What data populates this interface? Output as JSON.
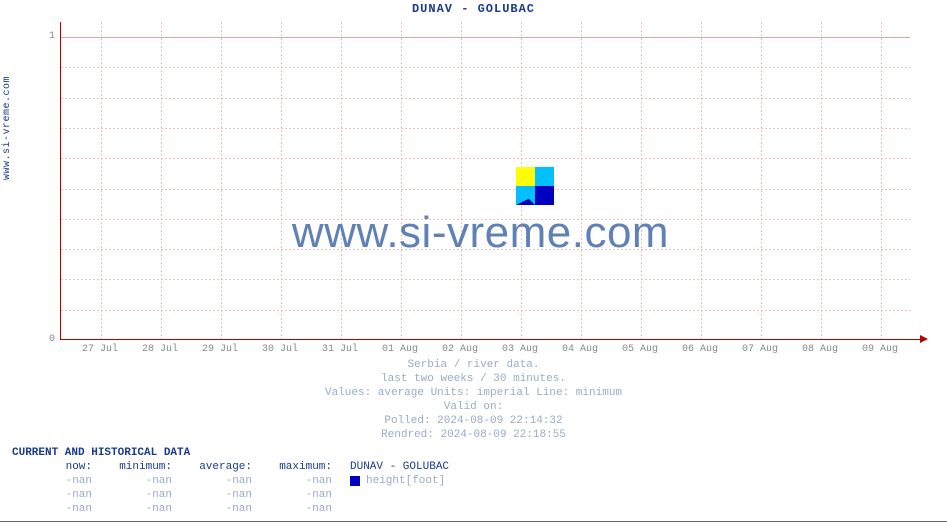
{
  "chart": {
    "title": "DUNAV -  GOLUBAC",
    "ylabel_side": "www.si-vreme.com",
    "watermark_text": "www.si-vreme.com",
    "plot_bg": "#ffffff",
    "axis_color": "#b00000",
    "grid_color": "#f0c0c0",
    "title_color": "#1a3a8a",
    "tick_color": "#888888",
    "meta_color": "#9aabc8",
    "yticks": [
      {
        "v": 0,
        "label": "0"
      },
      {
        "v": 1,
        "label": "1"
      }
    ],
    "ylim": [
      0,
      1.05
    ],
    "xticks": [
      "27 Jul",
      "28 Jul",
      "29 Jul",
      "30 Jul",
      "31 Jul",
      "01 Aug",
      "02 Aug",
      "03 Aug",
      "04 Aug",
      "05 Aug",
      "06 Aug",
      "07 Aug",
      "08 Aug",
      "09 Aug"
    ],
    "minor_h_count": 10,
    "logo_colors": {
      "a": "#ffff00",
      "b": "#00c0ff",
      "c": "#0000c0"
    }
  },
  "meta": {
    "line1": "Serbia / river data.",
    "line2": "last two weeks / 30 minutes.",
    "line3": "Values: average  Units: imperial  Line: minimum",
    "line4": "Valid on:",
    "line5": "Polled: 2024-08-09 22:14:32",
    "line6": "Rendred: 2024-08-09 22:18:55"
  },
  "table": {
    "header": "CURRENT AND HISTORICAL DATA",
    "columns": [
      "now:",
      "minimum:",
      "average:",
      "maximum:"
    ],
    "series_label": "DUNAV -  GOLUBAC",
    "legend_text": "height[foot]",
    "legend_color": "#0000c0",
    "rows": [
      [
        "-nan",
        "-nan",
        "-nan",
        "-nan"
      ],
      [
        "-nan",
        "-nan",
        "-nan",
        "-nan"
      ],
      [
        "-nan",
        "-nan",
        "-nan",
        "-nan"
      ]
    ]
  }
}
